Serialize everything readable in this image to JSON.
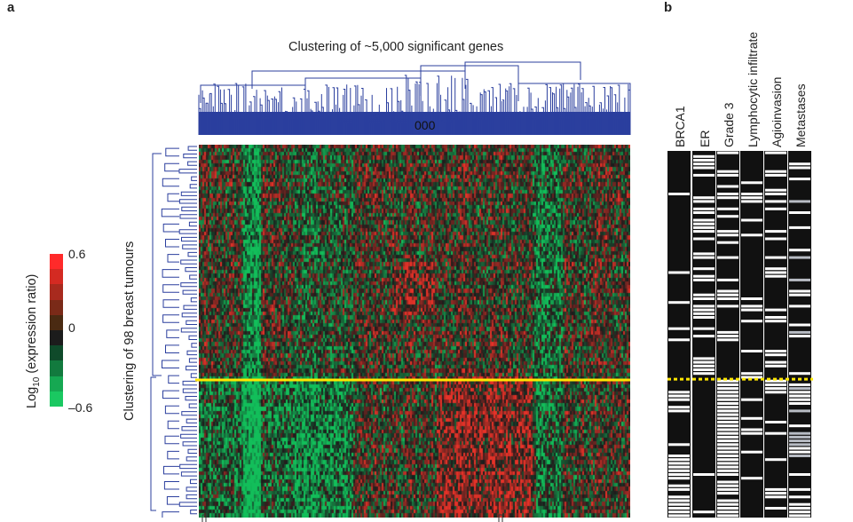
{
  "panel_a": {
    "letter": "a",
    "title": "Clustering of ~5,000 significant genes",
    "dendrogram_label": "000",
    "y_axis_label": "Clustering of 98 breast tumours"
  },
  "panel_b": {
    "letter": "b",
    "columns": [
      "BRCA1",
      "ER",
      "Grade 3",
      "Lymphocytic infiltrate",
      "Agioinvasion",
      "Metastases"
    ]
  },
  "colour_scale": {
    "label_prefix": "Log",
    "label_sub": "10",
    "label_suffix": " (expression ratio)",
    "ticks": [
      "0.6",
      "0",
      "–0.6"
    ],
    "colors": [
      "#ff2a2a",
      "#d42a22",
      "#a82a1e",
      "#7a2a18",
      "#4a2a12",
      "#1c1c1c",
      "#0f4a2a",
      "#127a3e",
      "#16a852",
      "#1ac861"
    ]
  },
  "chart_data": {
    "type": "heatmap",
    "title": "Clustering of ~5,000 significant genes",
    "ylabel": "Clustering of 98 breast tumours",
    "value_range": [
      -0.6,
      0.6
    ],
    "n_genes": 5000,
    "n_tumours": 98,
    "cluster_split": "yellow horizontal line separates two tumour clusters",
    "annotation_columns": [
      "BRCA1",
      "ER",
      "Grade 3",
      "Lymphocytic infiltrate",
      "Agioinvasion",
      "Metastases"
    ],
    "colors": {
      "up": "#ff2a2a",
      "zero": "#1c1c1c",
      "down": "#1ac861",
      "dendrogram": "#2b3f9e",
      "split_line": "#ffe600"
    }
  }
}
